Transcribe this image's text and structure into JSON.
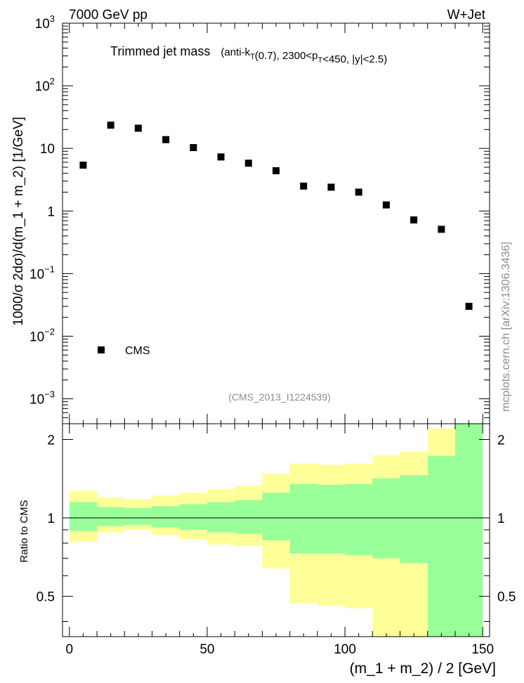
{
  "header": {
    "left": "7000 GeV pp",
    "right": "W+Jet"
  },
  "side_note": "mcplots.cern.ch [arXiv:1306.3436]",
  "chart_data": [
    {
      "type": "scatter",
      "title_main": "Trimmed jet mass",
      "title_detail": "(anti-k_T(0.7), 2300<p_T<450, |y|<2.5)",
      "ylabel": "1000/σ 2dσ)/d(m_1 + m_2) [1/GeV]",
      "yscale": "log",
      "ylim": [
        0.0004,
        1000
      ],
      "xlim": [
        -2.5,
        152.5
      ],
      "y_ticks": [
        {
          "v": 1000,
          "label": "10",
          "exp": "3"
        },
        {
          "v": 100,
          "label": "10",
          "exp": "2"
        },
        {
          "v": 10,
          "label": "10",
          "exp": ""
        },
        {
          "v": 1,
          "label": "1",
          "exp": ""
        },
        {
          "v": 0.1,
          "label": "10",
          "exp": "−1"
        },
        {
          "v": 0.01,
          "label": "10",
          "exp": "−2"
        },
        {
          "v": 0.001,
          "label": "10",
          "exp": "−3"
        }
      ],
      "series": [
        {
          "name": "CMS",
          "color": "#000000",
          "x": [
            5,
            15,
            25,
            35,
            45,
            55,
            65,
            75,
            85,
            95,
            105,
            115,
            125,
            135,
            145
          ],
          "y": [
            5.4,
            23.5,
            21.0,
            13.8,
            10.3,
            7.3,
            5.8,
            4.4,
            2.5,
            2.4,
            2.0,
            1.25,
            0.72,
            0.51,
            0.03
          ]
        }
      ],
      "legend": "lower-left",
      "annotation": "(CMS_2013_I1224539)"
    },
    {
      "type": "area",
      "ylabel": "Ratio to CMS",
      "xlabel": "(m_1 + m_2) / 2 [GeV]",
      "xlim": [
        -2.5,
        152.5
      ],
      "ylim": [
        0.35,
        2.3
      ],
      "x_ticks": [
        0,
        50,
        100,
        150
      ],
      "y_ticks": [
        {
          "v": 2,
          "label": "2"
        },
        {
          "v": 1,
          "label": "1"
        },
        {
          "v": 0.5,
          "label": "0.5"
        }
      ],
      "reference_line": 1,
      "bin_edges": [
        0,
        10,
        20,
        30,
        40,
        50,
        60,
        70,
        80,
        90,
        100,
        110,
        120,
        130,
        140,
        150
      ],
      "band_outer": {
        "color": "#ffff99",
        "low": [
          0.81,
          0.88,
          0.9,
          0.86,
          0.83,
          0.79,
          0.78,
          0.64,
          0.47,
          0.46,
          0.45,
          0.35,
          0.35,
          0.35,
          0.35
        ],
        "high": [
          1.27,
          1.2,
          1.18,
          1.22,
          1.25,
          1.29,
          1.33,
          1.48,
          1.62,
          1.6,
          1.62,
          1.74,
          1.8,
          2.2,
          2.3
        ]
      },
      "band_inner": {
        "color": "#99ff99",
        "low": [
          0.89,
          0.93,
          0.94,
          0.92,
          0.9,
          0.88,
          0.87,
          0.82,
          0.73,
          0.73,
          0.72,
          0.7,
          0.67,
          0.35,
          0.35
        ],
        "high": [
          1.15,
          1.1,
          1.09,
          1.11,
          1.13,
          1.15,
          1.17,
          1.25,
          1.35,
          1.34,
          1.35,
          1.42,
          1.46,
          1.73,
          2.3
        ]
      }
    }
  ]
}
